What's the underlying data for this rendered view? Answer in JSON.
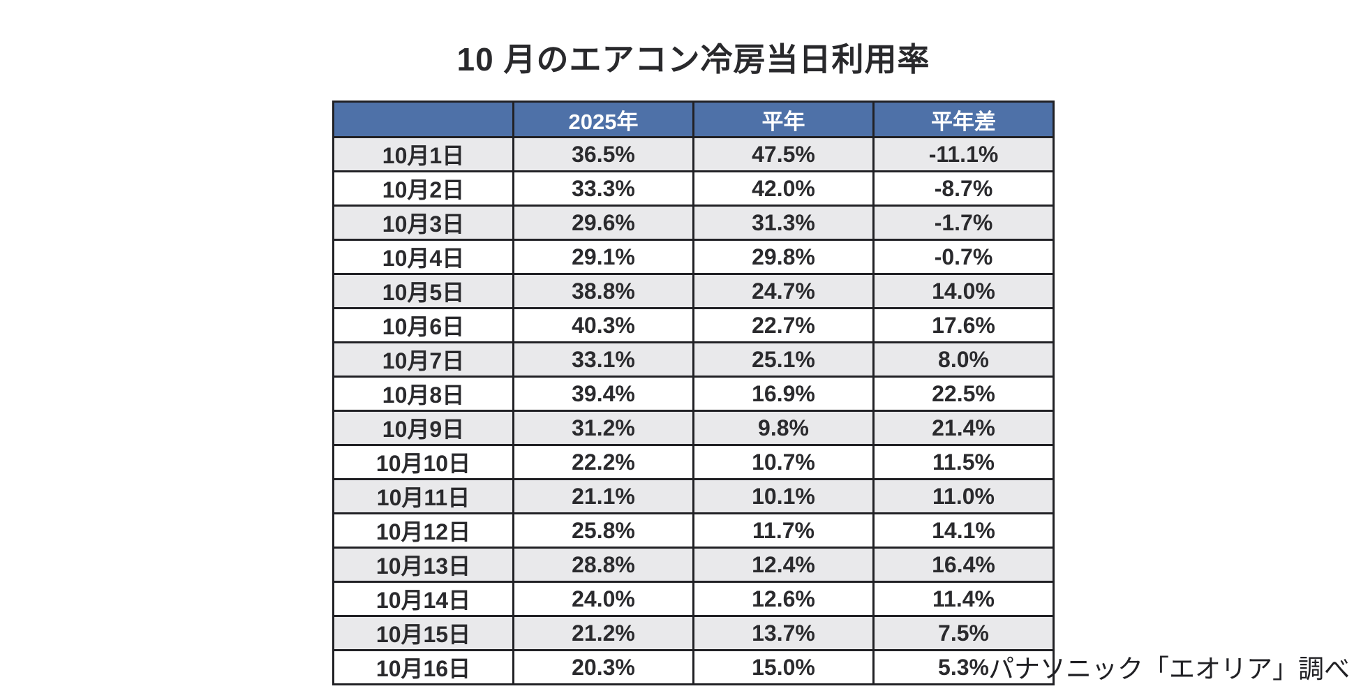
{
  "title": "10 月のエアコン冷房当日利用率",
  "source_note": "パナソニック「エオリア」調べ",
  "colors": {
    "header_bg": "#4e71a8",
    "header_text": "#ffffff",
    "row_alt_bg": "#e9e9eb",
    "row_bg": "#ffffff",
    "border": "#212125",
    "text": "#2a2a2d"
  },
  "table": {
    "columns": [
      "",
      "2025年",
      "平年",
      "平年差"
    ],
    "rows": [
      {
        "date": "10月1日",
        "y2025": "36.5%",
        "normal": "47.5%",
        "diff": "-11.1%"
      },
      {
        "date": "10月2日",
        "y2025": "33.3%",
        "normal": "42.0%",
        "diff": "-8.7%"
      },
      {
        "date": "10月3日",
        "y2025": "29.6%",
        "normal": "31.3%",
        "diff": "-1.7%"
      },
      {
        "date": "10月4日",
        "y2025": "29.1%",
        "normal": "29.8%",
        "diff": "-0.7%"
      },
      {
        "date": "10月5日",
        "y2025": "38.8%",
        "normal": "24.7%",
        "diff": "14.0%"
      },
      {
        "date": "10月6日",
        "y2025": "40.3%",
        "normal": "22.7%",
        "diff": "17.6%"
      },
      {
        "date": "10月7日",
        "y2025": "33.1%",
        "normal": "25.1%",
        "diff": "8.0%"
      },
      {
        "date": "10月8日",
        "y2025": "39.4%",
        "normal": "16.9%",
        "diff": "22.5%"
      },
      {
        "date": "10月9日",
        "y2025": "31.2%",
        "normal": "9.8%",
        "diff": "21.4%"
      },
      {
        "date": "10月10日",
        "y2025": "22.2%",
        "normal": "10.7%",
        "diff": "11.5%"
      },
      {
        "date": "10月11日",
        "y2025": "21.1%",
        "normal": "10.1%",
        "diff": "11.0%"
      },
      {
        "date": "10月12日",
        "y2025": "25.8%",
        "normal": "11.7%",
        "diff": "14.1%"
      },
      {
        "date": "10月13日",
        "y2025": "28.8%",
        "normal": "12.4%",
        "diff": "16.4%"
      },
      {
        "date": "10月14日",
        "y2025": "24.0%",
        "normal": "12.6%",
        "diff": "11.4%"
      },
      {
        "date": "10月15日",
        "y2025": "21.2%",
        "normal": "13.7%",
        "diff": "7.5%"
      },
      {
        "date": "10月16日",
        "y2025": "20.3%",
        "normal": "15.0%",
        "diff": "5.3%"
      }
    ]
  },
  "chart_data": {
    "type": "table",
    "title": "10 月のエアコン冷房当日利用率",
    "columns": [
      "",
      "2025年",
      "平年",
      "平年差"
    ],
    "categories": [
      "10月1日",
      "10月2日",
      "10月3日",
      "10月4日",
      "10月5日",
      "10月6日",
      "10月7日",
      "10月8日",
      "10月9日",
      "10月10日",
      "10月11日",
      "10月12日",
      "10月13日",
      "10月14日",
      "10月15日",
      "10月16日"
    ],
    "series": [
      {
        "name": "2025年",
        "values": [
          36.5,
          33.3,
          29.6,
          29.1,
          38.8,
          40.3,
          33.1,
          39.4,
          31.2,
          22.2,
          21.1,
          25.8,
          28.8,
          24.0,
          21.2,
          20.3
        ]
      },
      {
        "name": "平年",
        "values": [
          47.5,
          42.0,
          31.3,
          29.8,
          24.7,
          22.7,
          25.1,
          16.9,
          9.8,
          10.7,
          10.1,
          11.7,
          12.4,
          12.6,
          13.7,
          15.0
        ]
      },
      {
        "name": "平年差",
        "values": [
          -11.1,
          -8.7,
          -1.7,
          -0.7,
          14.0,
          17.6,
          8.0,
          22.5,
          21.4,
          11.5,
          11.0,
          14.1,
          16.4,
          11.4,
          7.5,
          5.3
        ]
      }
    ],
    "unit": "%",
    "source": "パナソニック「エオリア」調べ"
  }
}
